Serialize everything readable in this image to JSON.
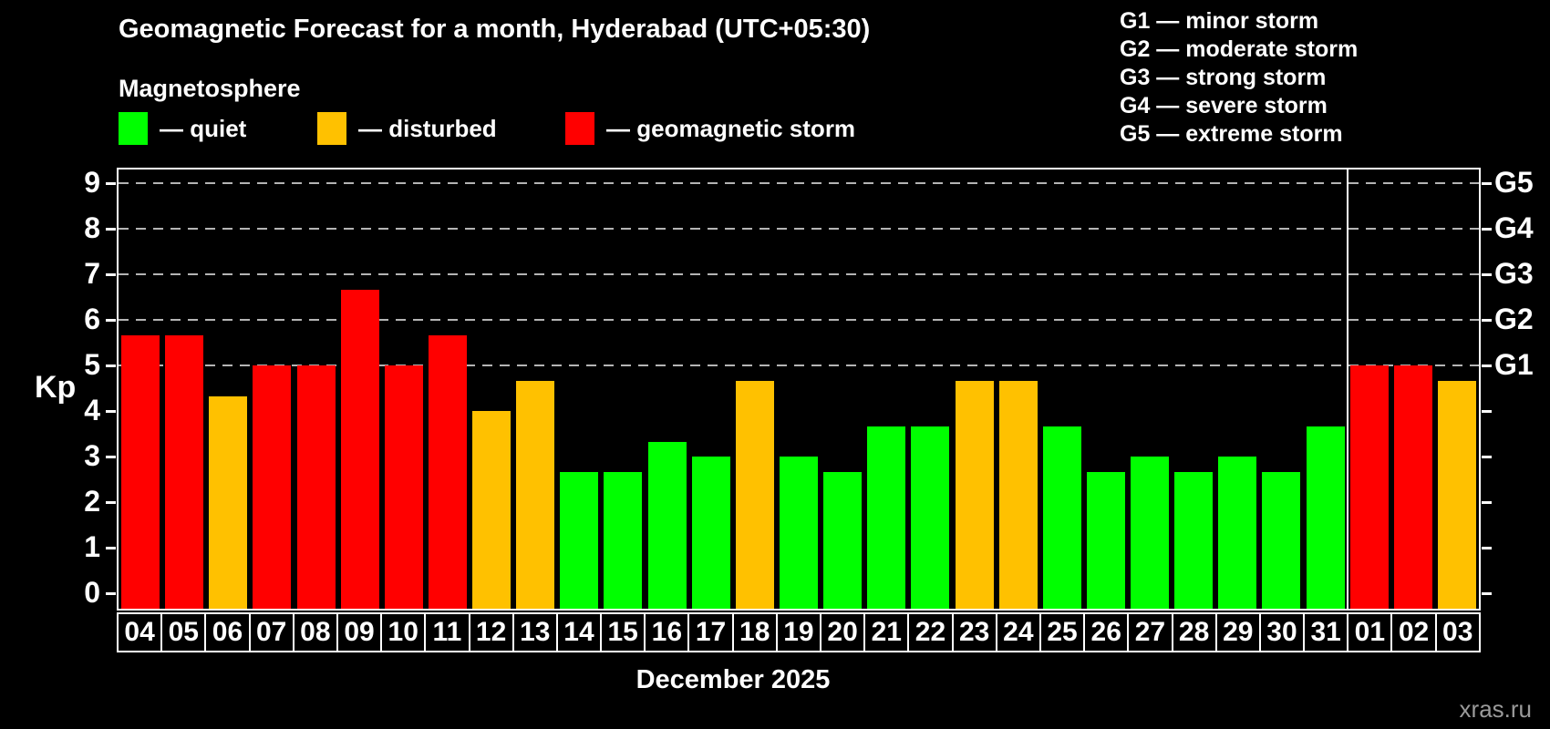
{
  "header": {
    "title": "Geomagnetic Forecast for a month, Hyderabad (UTC+05:30)",
    "subtitle": "Magnetosphere",
    "legend": [
      {
        "status": "quiet",
        "label": "— quiet"
      },
      {
        "status": "disturbed",
        "label": "— disturbed"
      },
      {
        "status": "storm",
        "label": "— geomagnetic storm"
      }
    ],
    "g_scale_legend": [
      "G1 — minor storm",
      "G2 — moderate storm",
      "G3 — strong storm",
      "G4 — severe storm",
      "G5 — extreme storm"
    ]
  },
  "colors": {
    "quiet": "#00ff00",
    "disturbed": "#ffc100",
    "storm": "#ff0000",
    "background": "#000000",
    "frame": "#ffffff",
    "gridline": "#b4b4b4",
    "watermark": "#9a9a9a"
  },
  "chart_data": {
    "type": "bar",
    "title": "Geomagnetic Forecast for a month, Hyderabad (UTC+05:30)",
    "ylabel": "Kp",
    "xlabel": "December 2025",
    "ylim": [
      0,
      9
    ],
    "yticks": [
      0,
      1,
      2,
      3,
      4,
      5,
      6,
      7,
      8,
      9
    ],
    "gridlines_at": [
      5,
      6,
      7,
      8,
      9
    ],
    "grid": "dashed, only at storm levels G1–G5",
    "legend_position": "top",
    "right_axis_labels": [
      {
        "kp": 5,
        "label": "G1"
      },
      {
        "kp": 6,
        "label": "G2"
      },
      {
        "kp": 7,
        "label": "G3"
      },
      {
        "kp": 8,
        "label": "G4"
      },
      {
        "kp": 9,
        "label": "G5"
      }
    ],
    "categories": [
      "04",
      "05",
      "06",
      "07",
      "08",
      "09",
      "10",
      "11",
      "12",
      "13",
      "14",
      "15",
      "16",
      "17",
      "18",
      "19",
      "20",
      "21",
      "22",
      "23",
      "24",
      "25",
      "26",
      "27",
      "28",
      "29",
      "30",
      "31",
      "01",
      "02",
      "03"
    ],
    "values": [
      5.67,
      5.67,
      4.33,
      5.0,
      5.0,
      6.67,
      5.0,
      5.67,
      4.0,
      4.67,
      2.67,
      2.67,
      3.33,
      3.0,
      4.67,
      3.0,
      2.67,
      3.67,
      3.67,
      4.67,
      4.67,
      3.67,
      2.67,
      3.0,
      2.67,
      3.0,
      2.67,
      3.67,
      5.0,
      5.0,
      4.67
    ],
    "statuses": [
      "storm",
      "storm",
      "disturbed",
      "storm",
      "storm",
      "storm",
      "storm",
      "storm",
      "disturbed",
      "disturbed",
      "quiet",
      "quiet",
      "quiet",
      "quiet",
      "disturbed",
      "quiet",
      "quiet",
      "quiet",
      "quiet",
      "disturbed",
      "disturbed",
      "quiet",
      "quiet",
      "quiet",
      "quiet",
      "quiet",
      "quiet",
      "quiet",
      "storm",
      "storm",
      "disturbed"
    ],
    "month_separator_after_index": 27
  },
  "footer": {
    "month_label": "December 2025",
    "watermark": "xras.ru"
  }
}
